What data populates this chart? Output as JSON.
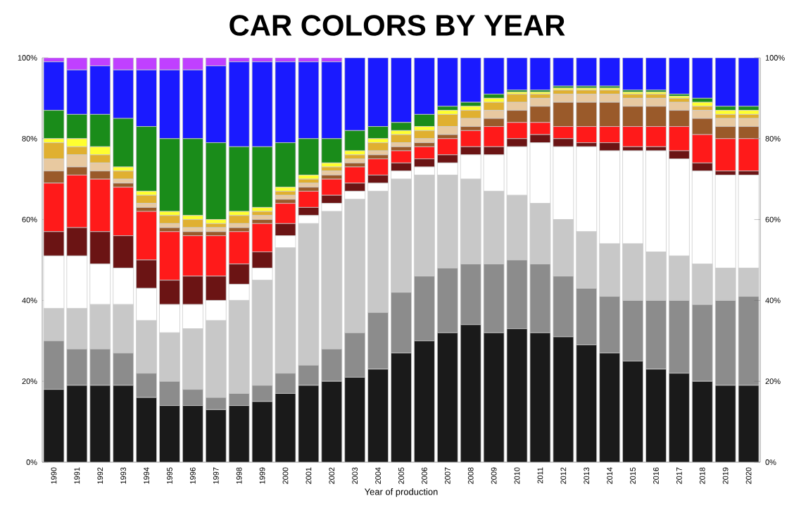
{
  "chart_data": {
    "type": "bar",
    "title": "CAR COLORS BY YEAR",
    "xlabel": "Year of production",
    "stacked": true,
    "categories": [
      "1990",
      "1991",
      "1992",
      "1993",
      "1994",
      "1995",
      "1996",
      "1997",
      "1998",
      "1999",
      "2000",
      "2001",
      "2002",
      "2003",
      "2004",
      "2005",
      "2006",
      "2007",
      "2008",
      "2009",
      "2010",
      "2011",
      "2012",
      "2013",
      "2014",
      "2015",
      "2016",
      "2017",
      "2018",
      "2019",
      "2020"
    ],
    "series": [
      {
        "color": "#1a1a1a",
        "values": [
          18,
          19,
          19,
          19,
          16,
          14,
          14,
          13,
          14,
          15,
          17,
          19,
          20,
          21,
          23,
          27,
          30,
          32,
          34,
          32,
          33,
          32,
          31,
          29,
          27,
          25,
          23,
          22,
          20,
          19,
          19
        ]
      },
      {
        "color": "#8c8c8c",
        "values": [
          12,
          9,
          9,
          8,
          6,
          6,
          4,
          3,
          3,
          4,
          5,
          5,
          8,
          11,
          14,
          15,
          16,
          16,
          15,
          17,
          17,
          17,
          15,
          14,
          14,
          15,
          17,
          18,
          19,
          21,
          22
        ]
      },
      {
        "color": "#c8c8c8",
        "values": [
          8,
          10,
          11,
          12,
          13,
          12,
          15,
          19,
          23,
          26,
          31,
          35,
          34,
          33,
          30,
          28,
          25,
          23,
          21,
          18,
          16,
          15,
          14,
          14,
          13,
          14,
          12,
          11,
          10,
          8,
          7
        ]
      },
      {
        "color": "#ffffff",
        "values": [
          13,
          13,
          10,
          9,
          8,
          7,
          6,
          5,
          4,
          3,
          3,
          2,
          2,
          2,
          2,
          2,
          2,
          3,
          6,
          9,
          12,
          15,
          18,
          21,
          23,
          23,
          25,
          24,
          23,
          23,
          23
        ]
      },
      {
        "color": "#6b1414",
        "values": [
          6,
          7,
          8,
          8,
          7,
          6,
          7,
          6,
          5,
          4,
          3,
          2,
          2,
          2,
          2,
          2,
          2,
          2,
          2,
          2,
          2,
          2,
          2,
          1,
          2,
          1,
          1,
          2,
          2,
          1,
          1
        ]
      },
      {
        "color": "#ff1a1a",
        "values": [
          12,
          13,
          13,
          12,
          12,
          12,
          10,
          10,
          8,
          7,
          5,
          4,
          4,
          4,
          4,
          3,
          3,
          4,
          4,
          5,
          4,
          3,
          3,
          4,
          4,
          5,
          5,
          6,
          7,
          8,
          8
        ]
      },
      {
        "color": "#9a5a2a",
        "values": [
          3,
          2,
          2,
          1,
          1,
          1,
          1,
          1,
          1,
          1,
          1,
          1,
          1,
          1,
          1,
          1,
          1,
          1,
          1,
          2,
          3,
          4,
          6,
          6,
          6,
          5,
          5,
          4,
          4,
          3,
          3
        ]
      },
      {
        "color": "#e8c9a0",
        "values": [
          3,
          3,
          2,
          1,
          1,
          1,
          1,
          1,
          1,
          1,
          1,
          1,
          1,
          1,
          1,
          1,
          1,
          2,
          2,
          2,
          2,
          2,
          2,
          2,
          2,
          2,
          2,
          2,
          2,
          2,
          2
        ]
      },
      {
        "color": "#e0b030",
        "values": [
          4,
          2,
          2,
          2,
          2,
          2,
          2,
          1,
          2,
          1,
          1,
          1,
          1,
          1,
          2,
          2,
          2,
          3,
          2,
          2,
          2,
          1,
          1,
          1,
          1,
          1,
          1,
          1,
          1,
          1,
          1
        ]
      },
      {
        "color": "#ffff30",
        "values": [
          1,
          2,
          2,
          1,
          1,
          1,
          1,
          1,
          1,
          1,
          1,
          1,
          1,
          1,
          1,
          1,
          1,
          1,
          1,
          1,
          0.5,
          0.5,
          0.5,
          0.5,
          0.5,
          0.5,
          0.5,
          0.5,
          1,
          1,
          1
        ]
      },
      {
        "color": "#1a8c1a",
        "values": [
          7,
          6,
          8,
          12,
          16,
          18,
          19,
          19,
          16,
          15,
          11,
          9,
          6,
          5,
          3,
          2,
          3,
          1,
          1,
          1,
          0.5,
          0.5,
          0.5,
          0.5,
          0.5,
          0.5,
          0.5,
          0.5,
          1,
          1,
          1
        ]
      },
      {
        "color": "#1a1aff",
        "values": [
          12,
          11,
          12,
          12,
          14,
          17,
          17,
          19,
          21,
          21,
          20,
          19,
          19,
          18,
          17,
          16,
          14,
          12,
          11,
          9,
          8,
          8,
          7,
          7,
          7,
          8,
          8,
          9,
          10,
          12,
          12
        ]
      },
      {
        "color": "#c040ff",
        "values": [
          1,
          3,
          2,
          3,
          3,
          3,
          3,
          2,
          1,
          1,
          1,
          1,
          1,
          0,
          0,
          0,
          0,
          0,
          0,
          0,
          0,
          0,
          0,
          0,
          0,
          0,
          0,
          0,
          0,
          0,
          0
        ]
      }
    ],
    "ylim": [
      0,
      100
    ],
    "yticks": [
      {
        "value": 0,
        "label": "0%"
      },
      {
        "value": 20,
        "label": "20%"
      },
      {
        "value": 40,
        "label": "40%"
      },
      {
        "value": 60,
        "label": "60%"
      },
      {
        "value": 80,
        "label": "80%"
      },
      {
        "value": 100,
        "label": "100%"
      }
    ],
    "y2lim": [
      0,
      100
    ],
    "y2ticks": [
      {
        "value": 0,
        "label": "0%"
      },
      {
        "value": 20,
        "label": "20%"
      },
      {
        "value": 40,
        "label": "40%"
      },
      {
        "value": 60,
        "label": "60%"
      },
      {
        "value": 80,
        "label": "80%"
      },
      {
        "value": 100,
        "label": "100%"
      }
    ]
  }
}
